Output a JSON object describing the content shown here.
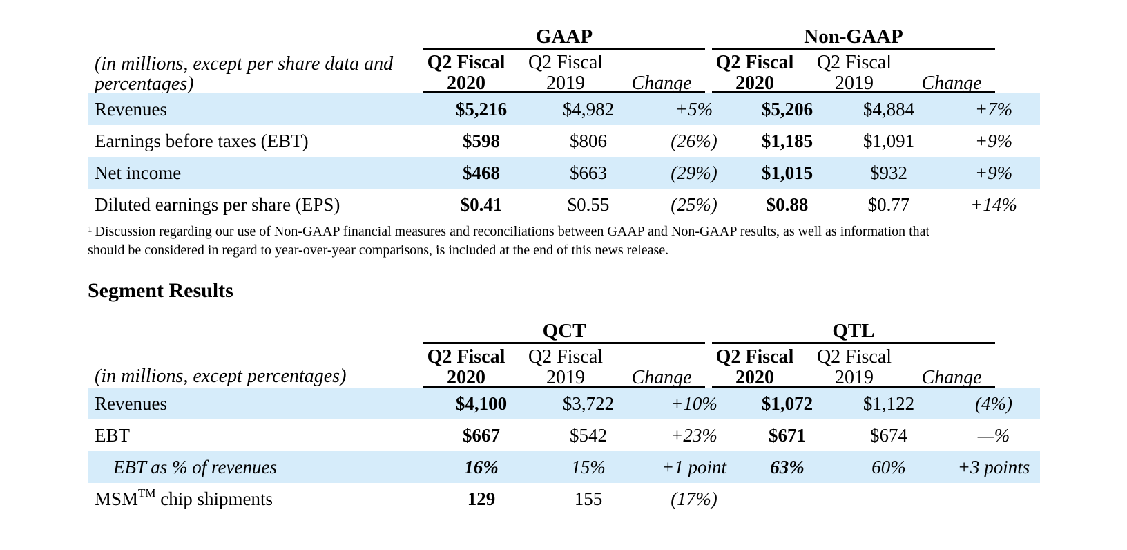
{
  "table1": {
    "groups": [
      "GAAP",
      "Non-GAAP"
    ],
    "unit_label": "(in millions, except per share data and percentages)",
    "col_headers": [
      "Q2 Fiscal 2020",
      "Q2 Fiscal 2019",
      "Change",
      "Q2 Fiscal 2020",
      "Q2 Fiscal 2019",
      "Change"
    ],
    "rows": [
      {
        "label": "Revenues",
        "values": [
          "$5,216",
          "$4,982",
          "+5%",
          "$5,206",
          "$4,884",
          "+7%"
        ]
      },
      {
        "label": "Earnings before taxes (EBT)",
        "values": [
          "$598",
          "$806",
          "(26%)",
          "$1,185",
          "$1,091",
          "+9%"
        ]
      },
      {
        "label": "Net income",
        "values": [
          "$468",
          "$663",
          "(29%)",
          "$1,015",
          "$932",
          "+9%"
        ]
      },
      {
        "label": "Diluted earnings per share (EPS)",
        "values": [
          "$0.41",
          "$0.55",
          "(25%)",
          "$0.88",
          "$0.77",
          "+14%"
        ]
      }
    ]
  },
  "footnote": {
    "marker": "1",
    "line1": "Discussion regarding our use of Non-GAAP financial measures and reconciliations between GAAP and Non-GAAP results, as well as information that",
    "line2": "should be considered in regard to year-over-year comparisons, is included at the end of this news release."
  },
  "section_title": "Segment Results",
  "table2": {
    "groups": [
      "QCT",
      "QTL"
    ],
    "unit_label": "(in millions, except percentages)",
    "col_headers": [
      "Q2 Fiscal 2020",
      "Q2 Fiscal 2019",
      "Change",
      "Q2 Fiscal 2020",
      "Q2 Fiscal 2019",
      "Change"
    ],
    "rows": [
      {
        "label": "Revenues",
        "values": [
          "$4,100",
          "$3,722",
          "+10%",
          "$1,072",
          "$1,122",
          "(4%)"
        ]
      },
      {
        "label": "EBT",
        "values": [
          "$667",
          "$542",
          "+23%",
          "$671",
          "$674",
          "—%"
        ]
      },
      {
        "label": "EBT as % of revenues",
        "values": [
          "16%",
          "15%",
          "+1 point",
          "63%",
          "60%",
          "+3 points"
        ]
      },
      {
        "label_main": "MSM",
        "label_tm": "TM",
        "label_rest": " chip shipments",
        "values": [
          "129",
          "155",
          "(17%)",
          "",
          "",
          ""
        ]
      }
    ]
  }
}
